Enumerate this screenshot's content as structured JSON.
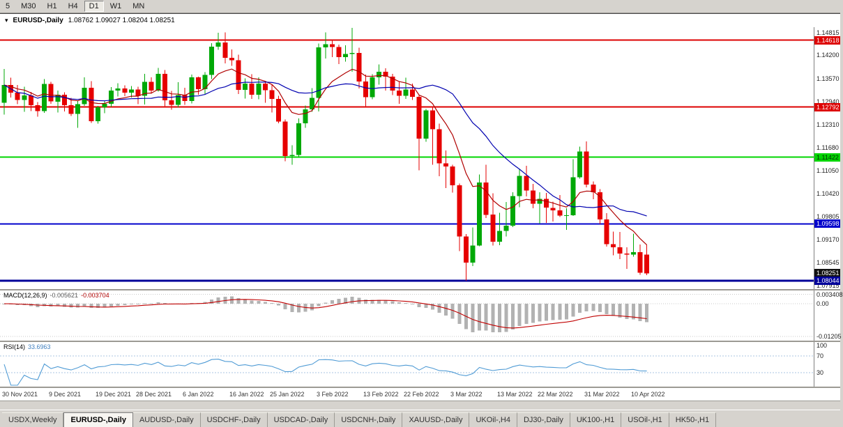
{
  "toolbar": {
    "buttons": [
      "5",
      "M30",
      "H1",
      "H4",
      "D1",
      "W1",
      "MN"
    ],
    "active": "D1"
  },
  "chart_header": {
    "collapse_icon": "▾",
    "title": "EURUSD-,Daily",
    "ohlc": "1.08762 1.09027 1.08204 1.08251"
  },
  "price_axis": {
    "badges": [
      {
        "text": "1.14618",
        "price": 1.14618,
        "bg": "#dd0000",
        "fg": "#ffffff"
      },
      {
        "text": "1.12792",
        "price": 1.12792,
        "bg": "#dd0000",
        "fg": "#ffffff"
      },
      {
        "text": "1.11422",
        "price": 1.11422,
        "bg": "#00d500",
        "fg": "#002b00"
      },
      {
        "text": "1.09598",
        "price": 1.09598,
        "bg": "#0000cc",
        "fg": "#ffffff"
      },
      {
        "text": "1.08251",
        "price": 1.08251,
        "bg": "#111111",
        "fg": "#ffffff"
      },
      {
        "text": "1.08044",
        "price": 1.08044,
        "bg": "#000099",
        "fg": "#ffffff"
      }
    ]
  },
  "macd": {
    "label": "MACD(12,26,9)",
    "main_value": "-0.005621",
    "signal_value": "-0.003704",
    "fast": 12,
    "slow": 26,
    "signal": 9,
    "axis_labels": [
      "0.003408",
      "0.00",
      "-0.01205"
    ],
    "axis_levels": [
      0.003408,
      0,
      -0.01205
    ]
  },
  "rsi": {
    "label": "RSI(14)",
    "value": "33.6963",
    "period": 14,
    "axis_labels": [
      "100",
      "70",
      "30"
    ],
    "axis_levels": [
      100,
      70,
      30
    ],
    "dashed_levels": [
      70,
      30
    ]
  },
  "tabs": {
    "items": [
      "USDX,Weekly",
      "EURUSD-,Daily",
      "AUDUSD-,Daily",
      "USDCHF-,Daily",
      "USDCAD-,Daily",
      "USDCNH-,Daily",
      "XAUUSD-,Daily",
      "UKOil-,H4",
      "DJ30-,Daily",
      "UK100-,H1",
      "USOil-,H1",
      "HK50-,H1"
    ],
    "active_index": 1
  },
  "colors": {
    "candle_up": "#00a807",
    "candle_down": "#e60000",
    "ma_fast": "#b00000",
    "ma_slow": "#0000b0",
    "macd_histogram": "#b2b2b2",
    "macd_signal": "#c00000",
    "rsi_line": "#4f9bd5",
    "rsi_level_dash": "#a9c4e0",
    "grid_dot": "#c8c8c8"
  },
  "chart_data": {
    "type": "candlestick",
    "symbol": "EURUSD-",
    "timeframe": "Daily",
    "last_ohlc": {
      "open": 1.08762,
      "high": 1.09027,
      "low": 1.08204,
      "close": 1.08251
    },
    "ylim": [
      1.0782,
      1.1497
    ],
    "y_axis_ticks": [
      "1.14815",
      "1.14200",
      "1.13570",
      "1.12940",
      "1.12310",
      "1.11680",
      "1.11050",
      "1.10420",
      "1.09805",
      "1.09170",
      "1.08545",
      "1.07915"
    ],
    "x_ticks": [
      {
        "label": "30 Nov 2021",
        "candle": 0
      },
      {
        "label": "9 Dec 2021",
        "candle": 7
      },
      {
        "label": "19 Dec 2021",
        "candle": 14
      },
      {
        "label": "28 Dec 2021",
        "candle": 20
      },
      {
        "label": "6 Jan 2022",
        "candle": 27
      },
      {
        "label": "16 Jan 2022",
        "candle": 34
      },
      {
        "label": "25 Jan 2022",
        "candle": 40
      },
      {
        "label": "3 Feb 2022",
        "candle": 47
      },
      {
        "label": "13 Feb 2022",
        "candle": 54
      },
      {
        "label": "22 Feb 2022",
        "candle": 60
      },
      {
        "label": "3 Mar 2022",
        "candle": 67
      },
      {
        "label": "13 Mar 2022",
        "candle": 74
      },
      {
        "label": "22 Mar 2022",
        "candle": 80
      },
      {
        "label": "31 Mar 2022",
        "candle": 87
      },
      {
        "label": "10 Apr 2022",
        "candle": 94
      }
    ],
    "horizontal_lines": [
      {
        "price": 1.14618,
        "color": "#dd0000",
        "width": 2
      },
      {
        "price": 1.12792,
        "color": "#dd0000",
        "width": 2
      },
      {
        "price": 1.11422,
        "color": "#00d500",
        "width": 2
      },
      {
        "price": 1.09598,
        "color": "#0000cc",
        "width": 2
      },
      {
        "price": 1.08044,
        "color": "#000099",
        "width": 3
      }
    ],
    "moving_averages": [
      {
        "type": "ema",
        "period": 10,
        "color": "#b00000"
      },
      {
        "type": "sma",
        "period": 21,
        "color": "#0000b0"
      }
    ],
    "candles_ohlc": [
      [
        1.1291,
        1.1383,
        1.1258,
        1.1339
      ],
      [
        1.1339,
        1.1359,
        1.1305,
        1.1318
      ],
      [
        1.1318,
        1.1339,
        1.1287,
        1.1298
      ],
      [
        1.1298,
        1.1334,
        1.1266,
        1.1311
      ],
      [
        1.1311,
        1.132,
        1.1268,
        1.1284
      ],
      [
        1.1284,
        1.1293,
        1.1253,
        1.1268
      ],
      [
        1.1268,
        1.1355,
        1.1263,
        1.1342
      ],
      [
        1.1342,
        1.1348,
        1.1288,
        1.1294
      ],
      [
        1.1294,
        1.1324,
        1.1264,
        1.1313
      ],
      [
        1.1313,
        1.1319,
        1.1267,
        1.1284
      ],
      [
        1.1284,
        1.1304,
        1.1255,
        1.126
      ],
      [
        1.126,
        1.1296,
        1.1222,
        1.1287
      ],
      [
        1.1287,
        1.136,
        1.1282,
        1.1332
      ],
      [
        1.1332,
        1.135,
        1.1236,
        1.124
      ],
      [
        1.124,
        1.1282,
        1.1234,
        1.1278
      ],
      [
        1.1278,
        1.1295,
        1.1262,
        1.1288
      ],
      [
        1.1288,
        1.1333,
        1.1279,
        1.1324
      ],
      [
        1.1324,
        1.1344,
        1.1308,
        1.133
      ],
      [
        1.133,
        1.1338,
        1.1309,
        1.1318
      ],
      [
        1.1318,
        1.1336,
        1.1305,
        1.1327
      ],
      [
        1.1327,
        1.1334,
        1.1287,
        1.131
      ],
      [
        1.131,
        1.137,
        1.1286,
        1.1348
      ],
      [
        1.1348,
        1.136,
        1.1315,
        1.1324
      ],
      [
        1.1324,
        1.1386,
        1.1321,
        1.137
      ],
      [
        1.137,
        1.138,
        1.1279,
        1.1297
      ],
      [
        1.1297,
        1.1323,
        1.1272,
        1.1285
      ],
      [
        1.1285,
        1.1347,
        1.1278,
        1.1312
      ],
      [
        1.1312,
        1.1332,
        1.1285,
        1.1295
      ],
      [
        1.1295,
        1.1368,
        1.1289,
        1.136
      ],
      [
        1.136,
        1.1362,
        1.1313,
        1.1328
      ],
      [
        1.1328,
        1.1374,
        1.1314,
        1.1367
      ],
      [
        1.1367,
        1.1453,
        1.1355,
        1.1444
      ],
      [
        1.1444,
        1.1482,
        1.1435,
        1.1455
      ],
      [
        1.1455,
        1.1483,
        1.1398,
        1.1413
      ],
      [
        1.1413,
        1.1436,
        1.1391,
        1.1407
      ],
      [
        1.1407,
        1.1422,
        1.1314,
        1.1326
      ],
      [
        1.1326,
        1.1357,
        1.1302,
        1.1343
      ],
      [
        1.1343,
        1.1369,
        1.1301,
        1.1313
      ],
      [
        1.1313,
        1.136,
        1.13,
        1.1343
      ],
      [
        1.1343,
        1.1349,
        1.1291,
        1.1325
      ],
      [
        1.1325,
        1.1339,
        1.1264,
        1.1301
      ],
      [
        1.1301,
        1.131,
        1.1235,
        1.1239
      ],
      [
        1.1239,
        1.1245,
        1.1131,
        1.1145
      ],
      [
        1.1145,
        1.1175,
        1.1121,
        1.1148
      ],
      [
        1.1148,
        1.1248,
        1.1141,
        1.1235
      ],
      [
        1.1235,
        1.1283,
        1.1222,
        1.1273
      ],
      [
        1.1273,
        1.1331,
        1.1266,
        1.1304
      ],
      [
        1.1304,
        1.1452,
        1.1267,
        1.1442
      ],
      [
        1.1442,
        1.1483,
        1.1411,
        1.145
      ],
      [
        1.145,
        1.146,
        1.1415,
        1.1443
      ],
      [
        1.1443,
        1.1449,
        1.1396,
        1.1415
      ],
      [
        1.1415,
        1.1448,
        1.1403,
        1.1424
      ],
      [
        1.1424,
        1.1495,
        1.1375,
        1.1427
      ],
      [
        1.1427,
        1.1441,
        1.133,
        1.1349
      ],
      [
        1.1349,
        1.1368,
        1.128,
        1.1306
      ],
      [
        1.1306,
        1.1369,
        1.13,
        1.136
      ],
      [
        1.136,
        1.1395,
        1.134,
        1.1375
      ],
      [
        1.1375,
        1.1385,
        1.1324,
        1.1362
      ],
      [
        1.1362,
        1.137,
        1.1312,
        1.1324
      ],
      [
        1.1324,
        1.135,
        1.1288,
        1.131
      ],
      [
        1.131,
        1.1359,
        1.1301,
        1.1327
      ],
      [
        1.1327,
        1.1343,
        1.1298,
        1.1307
      ],
      [
        1.1307,
        1.1313,
        1.1106,
        1.1193
      ],
      [
        1.1193,
        1.1274,
        1.1184,
        1.127
      ],
      [
        1.127,
        1.1278,
        1.1121,
        1.1218
      ],
      [
        1.1218,
        1.1234,
        1.109,
        1.1125
      ],
      [
        1.1125,
        1.116,
        1.1058,
        1.1117
      ],
      [
        1.1117,
        1.1121,
        1.1045,
        1.1065
      ],
      [
        1.1065,
        1.107,
        1.0886,
        1.0926
      ],
      [
        1.0926,
        1.0932,
        1.0805,
        1.0854
      ],
      [
        1.0854,
        1.095,
        1.0845,
        1.0901
      ],
      [
        1.0901,
        1.1095,
        1.0899,
        1.1073
      ],
      [
        1.1073,
        1.1121,
        1.0976,
        1.0985
      ],
      [
        1.0985,
        1.1043,
        1.0901,
        1.0911
      ],
      [
        1.0911,
        1.099,
        1.0902,
        1.0941
      ],
      [
        1.0941,
        1.102,
        1.0926,
        1.0955
      ],
      [
        1.0955,
        1.1046,
        1.0951,
        1.1036
      ],
      [
        1.1036,
        1.1109,
        1.1005,
        1.1091
      ],
      [
        1.1091,
        1.1119,
        1.1035,
        1.1051
      ],
      [
        1.1051,
        1.1069,
        1.1003,
        1.1015
      ],
      [
        1.1015,
        1.1046,
        1.0961,
        1.1028
      ],
      [
        1.1028,
        1.1044,
        1.0963,
        1.1004
      ],
      [
        1.1004,
        1.1021,
        1.0966,
        1.0997
      ],
      [
        1.0997,
        1.1039,
        1.0979,
        1.0983
      ],
      [
        1.0983,
        1.1003,
        1.0944,
        1.0984
      ],
      [
        1.0984,
        1.1137,
        1.0982,
        1.1087
      ],
      [
        1.1087,
        1.1171,
        1.1083,
        1.1158
      ],
      [
        1.1158,
        1.1185,
        1.106,
        1.1067
      ],
      [
        1.1067,
        1.1076,
        1.1027,
        1.1046
      ],
      [
        1.1046,
        1.1055,
        1.096,
        1.0972
      ],
      [
        1.0972,
        1.0989,
        1.0898,
        1.0905
      ],
      [
        1.0905,
        1.0939,
        1.0874,
        1.0896
      ],
      [
        1.0896,
        1.0938,
        1.0864,
        1.0879
      ],
      [
        1.0879,
        1.0896,
        1.0837,
        1.0876
      ],
      [
        1.0876,
        1.0933,
        1.087,
        1.0883
      ],
      [
        1.0883,
        1.0904,
        1.0821,
        1.0827
      ],
      [
        1.08762,
        1.09027,
        1.08204,
        1.08251
      ]
    ]
  }
}
